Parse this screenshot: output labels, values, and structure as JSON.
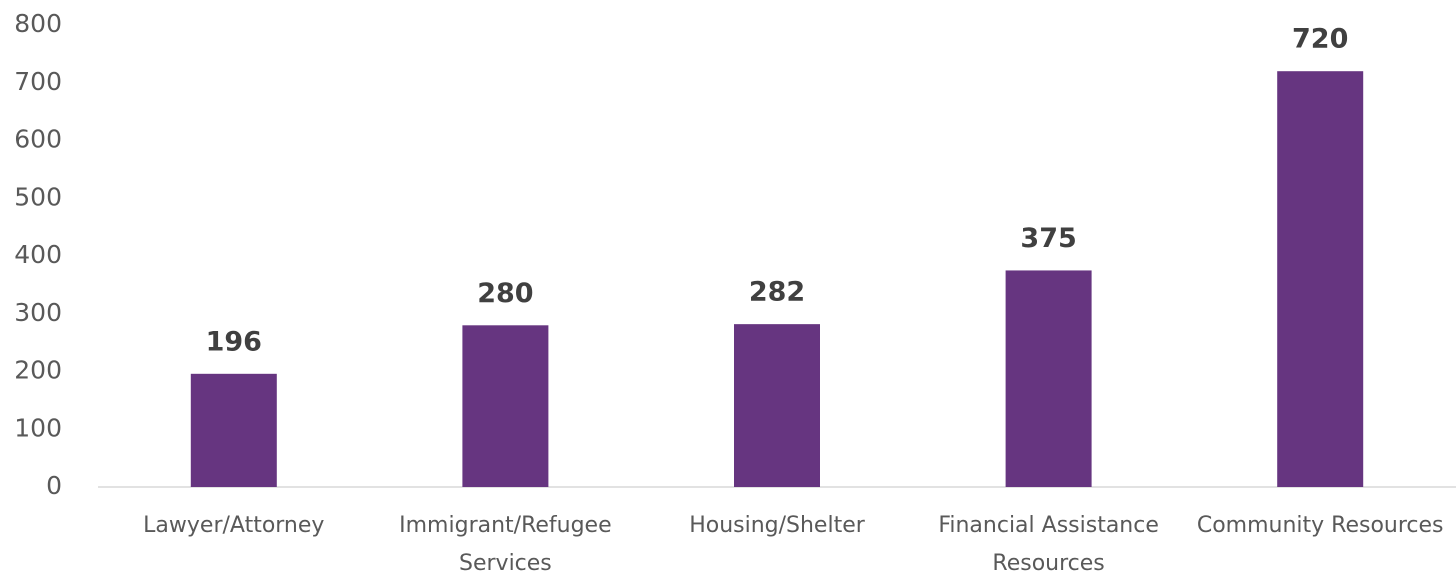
{
  "chart_data": {
    "type": "bar",
    "categories": [
      "Lawyer/Attorney",
      "Immigrant/Refugee Services",
      "Housing/Shelter",
      "Financial Assistance Resources",
      "Community Resources"
    ],
    "values": [
      196,
      280,
      282,
      375,
      720
    ],
    "color": "#663580",
    "ylim": [
      0,
      800
    ],
    "yticks": [
      0,
      100,
      200,
      300,
      400,
      500,
      600,
      700,
      800
    ],
    "grid": false
  }
}
